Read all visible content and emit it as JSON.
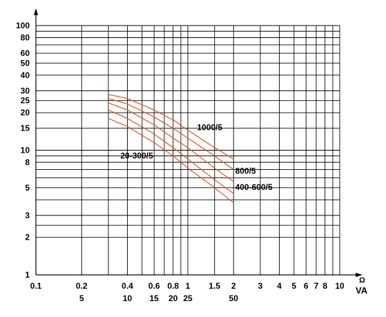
{
  "chart_data": {
    "type": "line",
    "x_scale": "log",
    "y_scale": "log",
    "xlim": [
      0.1,
      10
    ],
    "ylim": [
      1,
      100
    ],
    "grid": true,
    "x_unit_label": "Ω",
    "x_unit_label2": "VA",
    "x_ticks": [
      {
        "value": 0.1,
        "label": "0.1",
        "label2": ""
      },
      {
        "value": 0.2,
        "label": "0.2",
        "label2": "5"
      },
      {
        "value": 0.4,
        "label": "0.4",
        "label2": "10"
      },
      {
        "value": 0.6,
        "label": "0.6",
        "label2": "15"
      },
      {
        "value": 0.8,
        "label": "0.8",
        "label2": "20"
      },
      {
        "value": 1,
        "label": "1",
        "label2": "25"
      },
      {
        "value": 1.5,
        "label": "1.5",
        "label2": ""
      },
      {
        "value": 2,
        "label": "2",
        "label2": "50"
      },
      {
        "value": 3,
        "label": "3",
        "label2": ""
      },
      {
        "value": 4,
        "label": "4",
        "label2": ""
      },
      {
        "value": 5,
        "label": "5",
        "label2": ""
      },
      {
        "value": 6,
        "label": "6",
        "label2": ""
      },
      {
        "value": 7,
        "label": "7",
        "label2": ""
      },
      {
        "value": 8,
        "label": "8",
        "label2": ""
      },
      {
        "value": 10,
        "label": "10",
        "label2": ""
      }
    ],
    "x_grid": [
      0.1,
      0.2,
      0.3,
      0.4,
      0.5,
      0.6,
      0.7,
      0.8,
      0.9,
      1,
      1.5,
      2,
      3,
      4,
      5,
      6,
      7,
      8,
      9,
      10
    ],
    "y_ticks": [
      1,
      2,
      3,
      5,
      8,
      10,
      15,
      20,
      25,
      30,
      40,
      50,
      60,
      80,
      100
    ],
    "y_grid": [
      1,
      2,
      2.5,
      3,
      4,
      5,
      6,
      7,
      8,
      9,
      10,
      15,
      20,
      25,
      30,
      40,
      50,
      60,
      70,
      80,
      90,
      100
    ],
    "curve_color": "#e8501e",
    "series": [
      {
        "name": "1000/5",
        "x": [
          0.3,
          0.4,
          0.6,
          0.8,
          1,
          1.5,
          2
        ],
        "y": [
          28,
          26,
          21,
          17.5,
          14.5,
          10.5,
          8.5
        ]
      },
      {
        "name": "",
        "x": [
          0.3,
          0.4,
          0.6,
          0.8,
          1,
          1.5,
          2
        ],
        "y": [
          26,
          23.5,
          18.5,
          15,
          12.5,
          9,
          7
        ]
      },
      {
        "name": "800/5",
        "x": [
          0.3,
          0.4,
          0.6,
          0.8,
          1,
          1.5,
          2
        ],
        "y": [
          24,
          21,
          16,
          12.5,
          10.5,
          7.2,
          5.6
        ]
      },
      {
        "name": "400-600/5",
        "x": [
          0.3,
          0.4,
          0.6,
          0.8,
          1,
          1.5,
          2
        ],
        "y": [
          21,
          18,
          13.5,
          10.5,
          8.5,
          5.8,
          4.5
        ]
      },
      {
        "name": "20-300/5",
        "x": [
          0.3,
          0.4,
          0.6,
          0.8,
          1,
          1.5,
          2
        ],
        "y": [
          18,
          15.5,
          11.5,
          9,
          7.2,
          5,
          3.8
        ]
      }
    ],
    "annotations": [
      {
        "text": "1000/5",
        "x": 1.15,
        "y": 14.5
      },
      {
        "text": "20-300/5",
        "x": 0.36,
        "y": 8.6
      },
      {
        "text": "800/5",
        "x": 2.05,
        "y": 6.5
      },
      {
        "text": "400-600/5",
        "x": 2.05,
        "y": 4.8
      }
    ]
  }
}
